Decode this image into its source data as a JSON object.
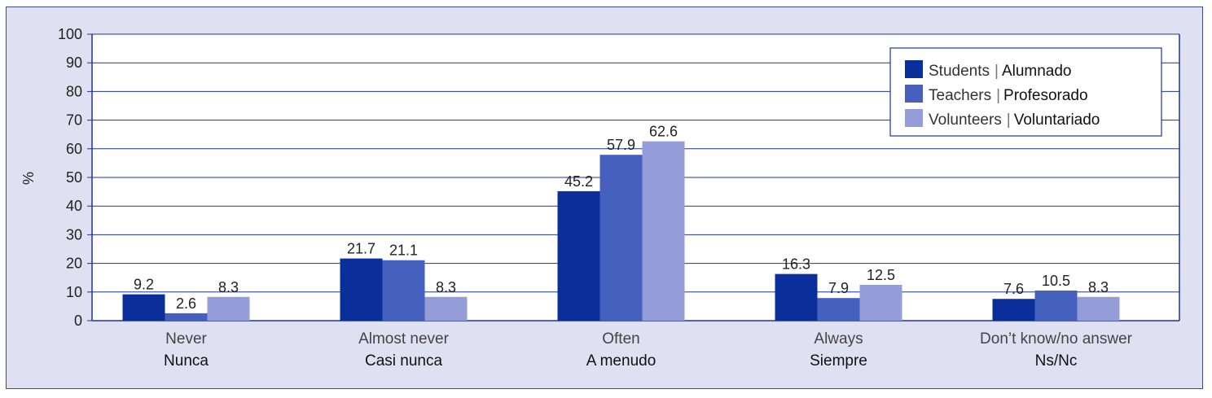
{
  "chart_data": {
    "type": "bar",
    "ylabel": "%",
    "ylim": [
      0,
      100
    ],
    "yticks": [
      0,
      10,
      20,
      30,
      40,
      50,
      60,
      70,
      80,
      90,
      100
    ],
    "grid": true,
    "legend_position": "top-right",
    "categories": [
      {
        "en": "Never",
        "es": "Nunca"
      },
      {
        "en": "Almost never",
        "es": "Casi nunca"
      },
      {
        "en": "Often",
        "es": "A menudo"
      },
      {
        "en": "Always",
        "es": "Siempre"
      },
      {
        "en": "Don’t know/no answer",
        "es": "Ns/Nc"
      }
    ],
    "series": [
      {
        "name_en": "Students",
        "name_es": "Alumnado",
        "color": "#0a2f9a",
        "values": [
          9.2,
          21.7,
          45.2,
          16.3,
          7.6
        ],
        "labels": [
          "9.2",
          "21.7",
          "45.2",
          "16.3",
          "7.6"
        ]
      },
      {
        "name_en": "Teachers",
        "name_es": "Profesorado",
        "color": "#4561bd",
        "values": [
          2.6,
          21.1,
          57.9,
          7.9,
          10.5
        ],
        "labels": [
          "2.6",
          "21.1",
          "57.9",
          "7.9",
          "10.5"
        ]
      },
      {
        "name_en": "Volunteers",
        "name_es": "Voluntariado",
        "color": "#959dd8",
        "values": [
          8.3,
          8.3,
          62.6,
          12.5,
          8.3
        ],
        "labels": [
          "8.3",
          "8.3",
          "62.6",
          "12.5",
          "8.3"
        ]
      }
    ]
  }
}
